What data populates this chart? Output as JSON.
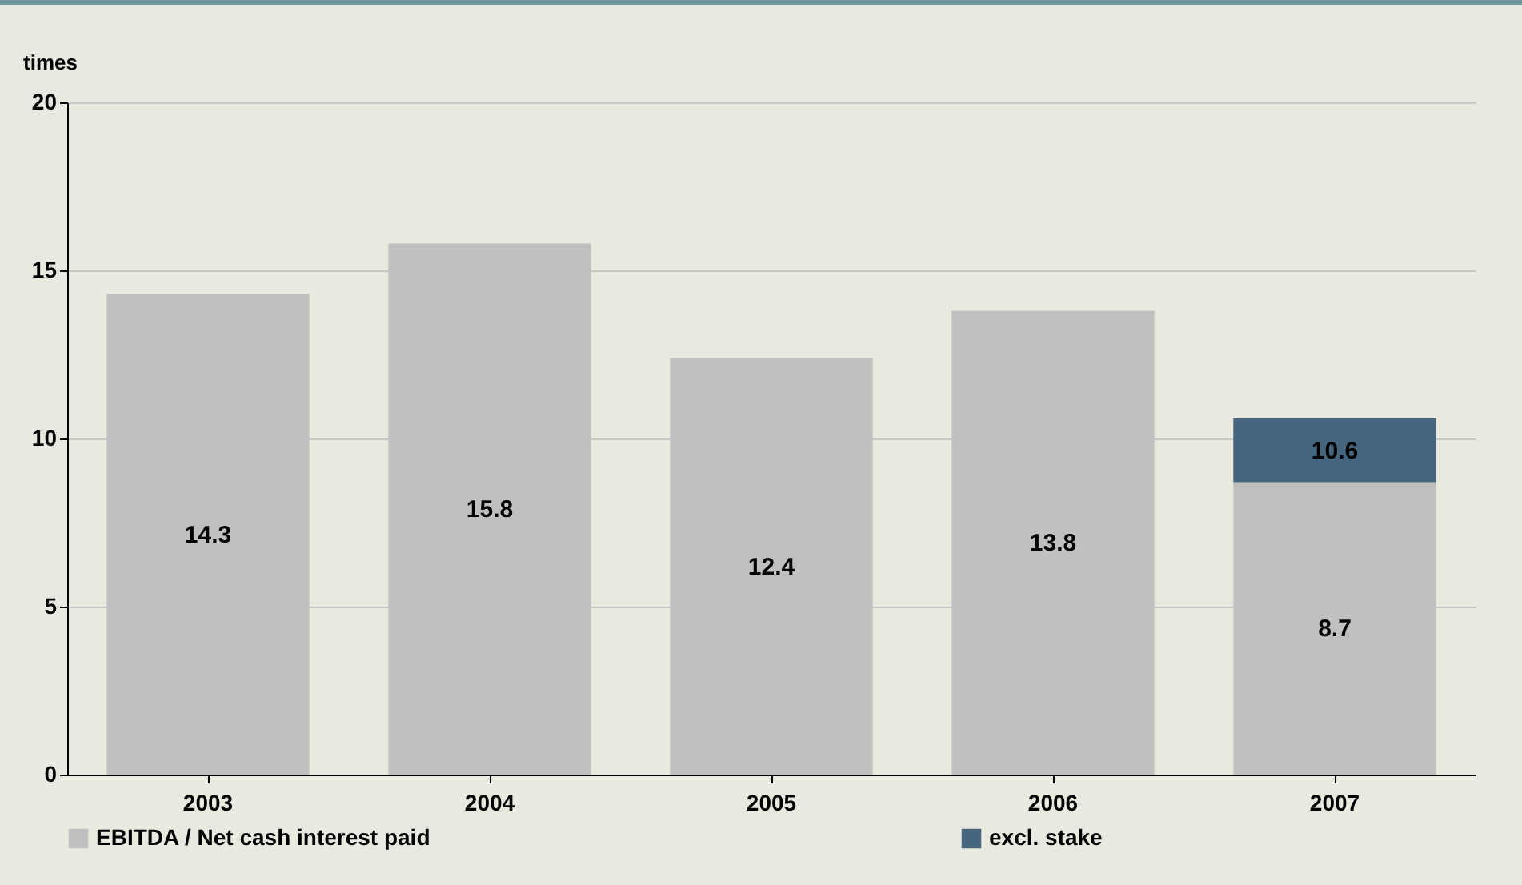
{
  "chart_data": {
    "type": "bar",
    "ylabel": "times",
    "categories": [
      "2003",
      "2004",
      "2005",
      "2006",
      "2007"
    ],
    "stacked": true,
    "series": [
      {
        "name": "EBITDA / Net cash interest paid",
        "color": "#c0c0c0",
        "values": [
          14.3,
          15.8,
          12.4,
          13.8,
          8.7
        ],
        "value_labels": [
          "14.3",
          "15.8",
          "12.4",
          "13.8",
          "8.7"
        ]
      },
      {
        "name": "excl. stake",
        "color": "#46667f",
        "values": [
          null,
          null,
          null,
          null,
          1.9
        ]
      }
    ],
    "totals": [
      null,
      null,
      null,
      null,
      "10.6"
    ],
    "ylim": [
      0,
      20
    ],
    "yticks": [
      0,
      5,
      10,
      15,
      20
    ],
    "grid": "y",
    "legend": "bottom"
  }
}
